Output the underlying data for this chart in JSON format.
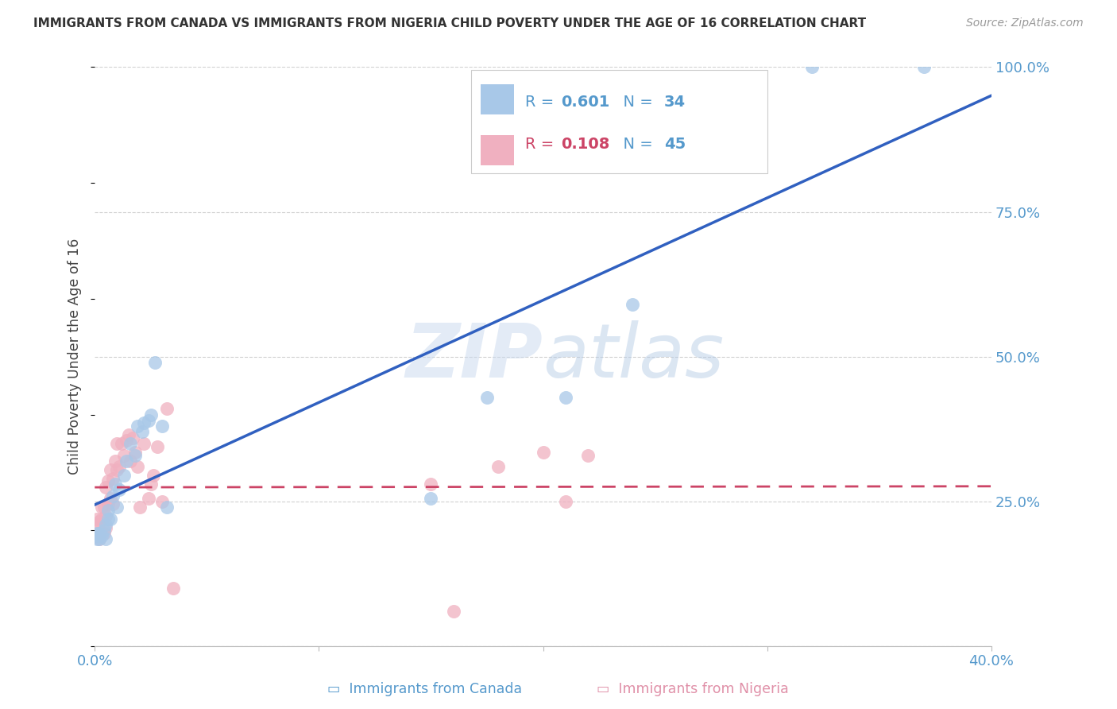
{
  "title": "IMMIGRANTS FROM CANADA VS IMMIGRANTS FROM NIGERIA CHILD POVERTY UNDER THE AGE OF 16 CORRELATION CHART",
  "source": "Source: ZipAtlas.com",
  "ylabel": "Child Poverty Under the Age of 16",
  "canada_R": 0.601,
  "canada_N": 34,
  "nigeria_R": 0.108,
  "nigeria_N": 45,
  "canada_color": "#a8c8e8",
  "nigeria_color": "#f0b0c0",
  "canada_line_color": "#3060c0",
  "nigeria_line_color": "#cc4466",
  "watermark_zip": "ZIP",
  "watermark_atlas": "atlas",
  "canada_scatter_x": [
    0.001,
    0.001,
    0.001,
    0.002,
    0.002,
    0.003,
    0.004,
    0.005,
    0.005,
    0.006,
    0.006,
    0.007,
    0.008,
    0.009,
    0.01,
    0.011,
    0.013,
    0.014,
    0.016,
    0.018,
    0.019,
    0.021,
    0.022,
    0.024,
    0.025,
    0.027,
    0.03,
    0.032,
    0.15,
    0.175,
    0.21,
    0.24,
    0.32,
    0.37
  ],
  "canada_scatter_y": [
    0.185,
    0.19,
    0.195,
    0.185,
    0.195,
    0.19,
    0.2,
    0.185,
    0.21,
    0.22,
    0.235,
    0.22,
    0.26,
    0.28,
    0.24,
    0.27,
    0.295,
    0.32,
    0.35,
    0.33,
    0.38,
    0.37,
    0.385,
    0.39,
    0.4,
    0.49,
    0.38,
    0.24,
    0.255,
    0.43,
    0.43,
    0.59,
    1.0,
    1.0
  ],
  "nigeria_scatter_x": [
    0.001,
    0.001,
    0.001,
    0.002,
    0.002,
    0.003,
    0.003,
    0.004,
    0.004,
    0.005,
    0.005,
    0.005,
    0.006,
    0.006,
    0.007,
    0.007,
    0.008,
    0.008,
    0.009,
    0.01,
    0.01,
    0.011,
    0.012,
    0.013,
    0.014,
    0.015,
    0.016,
    0.017,
    0.018,
    0.019,
    0.02,
    0.022,
    0.024,
    0.025,
    0.026,
    0.028,
    0.03,
    0.032,
    0.035,
    0.15,
    0.16,
    0.18,
    0.2,
    0.21,
    0.22
  ],
  "nigeria_scatter_y": [
    0.195,
    0.21,
    0.22,
    0.185,
    0.215,
    0.22,
    0.24,
    0.195,
    0.24,
    0.205,
    0.225,
    0.275,
    0.245,
    0.285,
    0.255,
    0.305,
    0.245,
    0.29,
    0.32,
    0.305,
    0.35,
    0.31,
    0.35,
    0.33,
    0.355,
    0.365,
    0.32,
    0.36,
    0.335,
    0.31,
    0.24,
    0.35,
    0.255,
    0.28,
    0.295,
    0.345,
    0.25,
    0.41,
    0.1,
    0.28,
    0.06,
    0.31,
    0.335,
    0.25,
    0.33
  ],
  "xmin": 0.0,
  "xmax": 0.4,
  "ymin": 0.0,
  "ymax": 1.0,
  "yticks": [
    0.0,
    0.25,
    0.5,
    0.75,
    1.0
  ],
  "ytick_labels": [
    "",
    "25.0%",
    "50.0%",
    "75.0%",
    "100.0%"
  ],
  "xticks": [
    0.0,
    0.1,
    0.2,
    0.3,
    0.4
  ],
  "xtick_labels": [
    "0.0%",
    "",
    "",
    "",
    "40.0%"
  ]
}
